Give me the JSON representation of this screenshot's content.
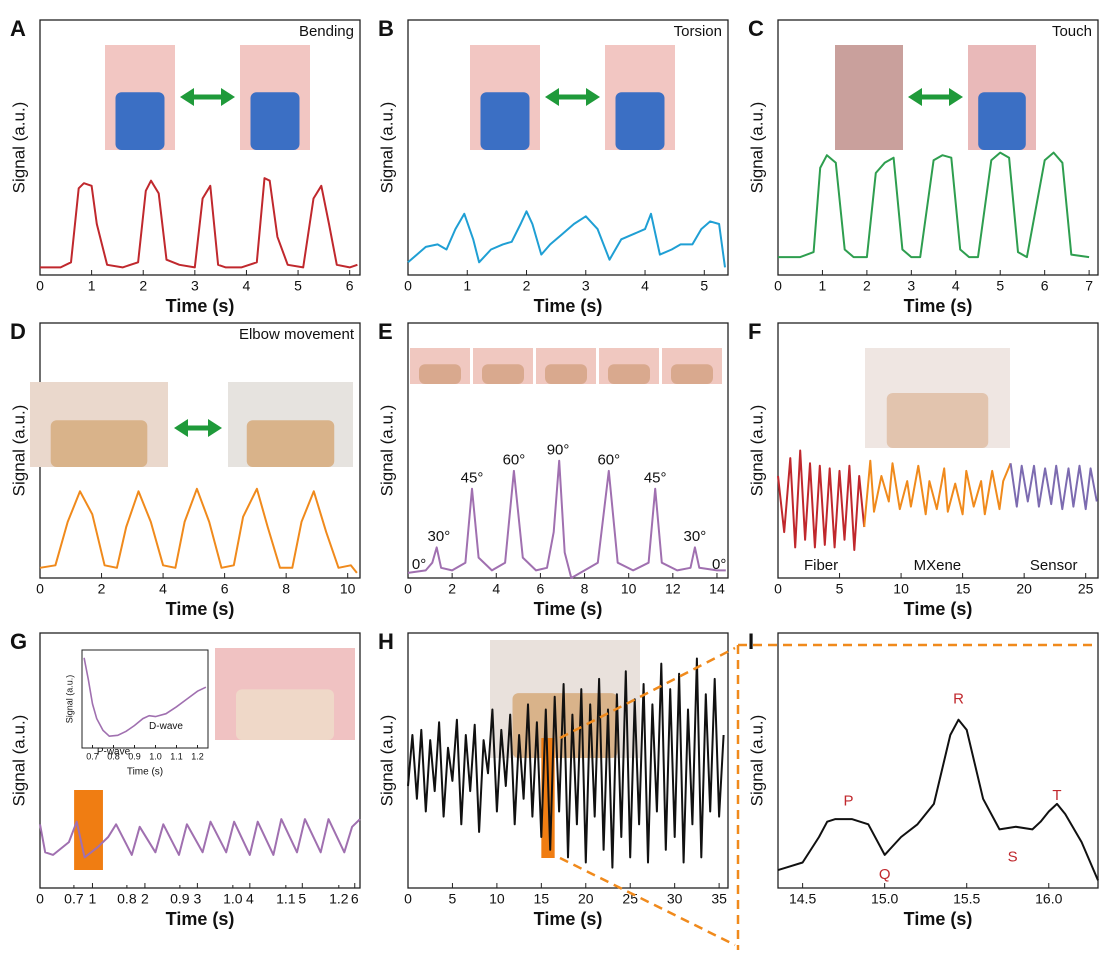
{
  "chart_data": [
    {
      "type": "line",
      "panel": "A",
      "annotation": "Bending",
      "xlabel": "Time (s)",
      "ylabel": "Signal (a.u.)",
      "xlim": [
        0,
        6.2
      ],
      "xticks": [
        0,
        1,
        2,
        3,
        4,
        5,
        6
      ],
      "ylim": [
        0,
        100
      ],
      "series": [
        {
          "color": "#c0282d",
          "x": [
            0,
            0.4,
            0.6,
            0.75,
            0.85,
            1.0,
            1.1,
            1.3,
            1.6,
            1.9,
            2.05,
            2.15,
            2.3,
            2.45,
            2.7,
            3.0,
            3.15,
            3.3,
            3.45,
            3.6,
            3.9,
            4.2,
            4.35,
            4.45,
            4.6,
            4.8,
            5.1,
            5.3,
            5.45,
            5.6,
            5.75,
            6.0,
            6.15
          ],
          "values": [
            3,
            3,
            5,
            34,
            36,
            35,
            20,
            4,
            3,
            5,
            33,
            37,
            32,
            6,
            4,
            3,
            30,
            35,
            4,
            3,
            3,
            5,
            38,
            37,
            15,
            4,
            3,
            30,
            35,
            20,
            4,
            3,
            4
          ]
        }
      ]
    },
    {
      "type": "line",
      "panel": "B",
      "annotation": "Torsion",
      "xlabel": "Time (s)",
      "ylabel": "Signal (a.u.)",
      "xlim": [
        0,
        5.4
      ],
      "xticks": [
        0,
        1,
        2,
        3,
        4,
        5
      ],
      "ylim": [
        0,
        100
      ],
      "series": [
        {
          "color": "#1f9fd4",
          "x": [
            0,
            0.15,
            0.3,
            0.5,
            0.65,
            0.8,
            0.95,
            1.1,
            1.2,
            1.4,
            1.6,
            1.75,
            1.9,
            2.0,
            2.1,
            2.25,
            2.4,
            2.6,
            2.8,
            3.0,
            3.2,
            3.4,
            3.6,
            3.8,
            4.0,
            4.1,
            4.25,
            4.45,
            4.6,
            4.8,
            4.95,
            5.1,
            5.25,
            5.35
          ],
          "values": [
            5,
            8,
            11,
            12,
            10,
            18,
            24,
            14,
            5,
            10,
            12,
            13,
            20,
            25,
            20,
            8,
            12,
            16,
            20,
            23,
            18,
            6,
            14,
            16,
            18,
            24,
            8,
            10,
            12,
            12,
            18,
            21,
            20,
            3
          ]
        }
      ]
    },
    {
      "type": "line",
      "panel": "C",
      "annotation": "Touch",
      "xlabel": "Time (s)",
      "ylabel": "Signal (a.u.)",
      "xlim": [
        0,
        7.2
      ],
      "xticks": [
        0,
        1,
        2,
        3,
        4,
        5,
        6,
        7
      ],
      "ylim": [
        0,
        100
      ],
      "series": [
        {
          "color": "#2e9e4f",
          "x": [
            0,
            0.5,
            0.8,
            0.95,
            1.1,
            1.3,
            1.5,
            1.7,
            2.0,
            2.2,
            2.4,
            2.6,
            2.8,
            3.0,
            3.2,
            3.5,
            3.7,
            3.9,
            4.1,
            4.3,
            4.5,
            4.8,
            5.0,
            5.2,
            5.4,
            5.6,
            6.0,
            6.2,
            6.4,
            6.6,
            7.0
          ],
          "values": [
            7,
            7,
            9,
            42,
            47,
            44,
            10,
            7,
            7,
            40,
            44,
            46,
            10,
            7,
            7,
            45,
            47,
            46,
            10,
            7,
            7,
            45,
            48,
            46,
            9,
            7,
            45,
            48,
            44,
            8,
            7
          ]
        }
      ]
    },
    {
      "type": "line",
      "panel": "D",
      "annotation": "Elbow movement",
      "xlabel": "Time (s)",
      "ylabel": "Signal (a.u.)",
      "xlim": [
        0,
        10.4
      ],
      "xticks": [
        0,
        2,
        4,
        6,
        8,
        10
      ],
      "ylim": [
        0,
        100
      ],
      "series": [
        {
          "color": "#f08a1c",
          "x": [
            0,
            0.5,
            0.9,
            1.3,
            1.7,
            2.1,
            2.5,
            2.8,
            3.2,
            3.6,
            4.0,
            4.4,
            4.7,
            5.1,
            5.5,
            5.9,
            6.3,
            6.6,
            7.05,
            7.4,
            7.8,
            8.2,
            8.5,
            8.9,
            9.3,
            9.7,
            10.1,
            10.3
          ],
          "values": [
            4,
            5,
            22,
            34,
            25,
            5,
            4,
            20,
            34,
            22,
            5,
            4,
            22,
            35,
            22,
            4,
            5,
            24,
            35,
            20,
            4,
            4,
            22,
            34,
            18,
            4,
            5,
            2
          ]
        }
      ]
    },
    {
      "type": "line",
      "panel": "E",
      "xlabel": "Time (s)",
      "ylabel": "Signal (a.u.)",
      "xlim": [
        0,
        14.5
      ],
      "xticks": [
        0,
        2,
        4,
        6,
        8,
        10,
        12,
        14
      ],
      "ylim": [
        0,
        100
      ],
      "peak_labels": [
        "0°",
        "30°",
        "45°",
        "60°",
        "90°",
        "60°",
        "45°",
        "30°",
        "0°"
      ],
      "series": [
        {
          "color": "#a070b0",
          "x": [
            0,
            0.8,
            1.1,
            1.3,
            1.5,
            2.0,
            2.6,
            2.9,
            3.2,
            3.8,
            4.4,
            4.8,
            5.2,
            5.8,
            6.3,
            6.6,
            6.85,
            7.1,
            7.4,
            8.0,
            8.6,
            9.1,
            9.5,
            10.2,
            10.9,
            11.2,
            11.5,
            12.2,
            12.8,
            13.0,
            13.2,
            14.0,
            14.4
          ],
          "values": [
            2,
            3,
            6,
            12,
            4,
            3,
            6,
            35,
            8,
            3,
            6,
            42,
            8,
            3,
            4,
            18,
            46,
            10,
            0,
            3,
            6,
            42,
            6,
            3,
            6,
            35,
            6,
            3,
            4,
            12,
            4,
            3,
            3
          ]
        }
      ]
    },
    {
      "type": "line",
      "panel": "F",
      "xlabel": "Time (s)",
      "ylabel": "Signal (a.u.)",
      "xlim": [
        0,
        26
      ],
      "xticks": [
        0,
        5,
        10,
        15,
        20,
        25
      ],
      "ylim": [
        0,
        100
      ],
      "series": [
        {
          "name": "Fiber",
          "color": "#c0282d",
          "x": [
            0,
            0.5,
            1.0,
            1.4,
            1.8,
            2.2,
            2.6,
            3.0,
            3.4,
            3.8,
            4.2,
            4.6,
            5.0,
            5.4,
            5.8,
            6.2,
            6.6,
            7.0
          ],
          "values": [
            40,
            18,
            47,
            12,
            50,
            15,
            45,
            12,
            44,
            13,
            43,
            12,
            42,
            15,
            44,
            11,
            40,
            20
          ]
        },
        {
          "name": "MXene",
          "color": "#f08a1c",
          "x": [
            7.0,
            7.5,
            7.8,
            8.4,
            9.0,
            9.3,
            9.9,
            10.5,
            10.8,
            11.4,
            12.0,
            12.3,
            12.9,
            13.5,
            13.8,
            14.4,
            15.0,
            15.3,
            15.9,
            16.5,
            16.8,
            17.4,
            18.0,
            18.3,
            18.9
          ],
          "values": [
            20,
            46,
            26,
            40,
            30,
            45,
            27,
            38,
            28,
            44,
            25,
            38,
            27,
            43,
            26,
            37,
            25,
            42,
            28,
            38,
            25,
            42,
            27,
            38,
            45
          ]
        },
        {
          "name": "Sensor",
          "color": "#7c6bb0",
          "x": [
            18.9,
            19.4,
            19.8,
            20.3,
            20.8,
            21.2,
            21.7,
            22.2,
            22.6,
            23.1,
            23.6,
            24.0,
            24.5,
            25.0,
            25.4,
            25.9
          ],
          "values": [
            45,
            28,
            44,
            30,
            44,
            28,
            43,
            29,
            44,
            27,
            43,
            28,
            44,
            27,
            43,
            30
          ]
        }
      ]
    },
    {
      "type": "line",
      "panel": "G",
      "xlabel": "Time (s)",
      "ylabel": "Signal (a.u.)",
      "xlim": [
        0,
        6.1
      ],
      "xticks": [
        0,
        1,
        2,
        3,
        4,
        5,
        6
      ],
      "ylim": [
        0,
        100
      ],
      "x2lim": [
        0.636,
        1.24
      ],
      "x2ticks": [
        0.7,
        0.8,
        0.9,
        {
          "value": 1,
          "label": "1.0"
        },
        1.1,
        1.2
      ],
      "highlight": {
        "color": "#f07d12",
        "x": [
          0.65,
          1.2
        ]
      },
      "series": [
        {
          "color": "#a070b0",
          "x": [
            0,
            0.1,
            0.25,
            0.55,
            0.7,
            0.85,
            1.1,
            1.3,
            1.45,
            1.75,
            1.9,
            2.2,
            2.35,
            2.65,
            2.8,
            3.1,
            3.25,
            3.55,
            3.7,
            4.0,
            4.15,
            4.45,
            4.6,
            4.9,
            5.05,
            5.35,
            5.5,
            5.8,
            5.95,
            6.1
          ],
          "values": [
            25,
            14,
            13,
            18,
            26,
            12,
            16,
            20,
            25,
            13,
            24,
            14,
            25,
            13,
            25,
            14,
            26,
            14,
            26,
            13,
            26,
            13,
            27,
            14,
            27,
            14,
            27,
            14,
            24,
            27
          ]
        }
      ],
      "inset": {
        "xlabel": "Time (s)",
        "ylabel": "Signal (a.u.)",
        "xlim": [
          0.65,
          1.25
        ],
        "ylim": [
          0,
          100
        ],
        "xticks": [
          0.7,
          0.8,
          0.9,
          {
            "value": 1,
            "label": "1.0"
          },
          1.1,
          1.2
        ],
        "labels": [
          "P-wave",
          "D-wave"
        ],
        "color": "#a070b0",
        "x": [
          0.66,
          0.68,
          0.7,
          0.72,
          0.75,
          0.78,
          0.82,
          0.86,
          0.9,
          0.94,
          0.97,
          1.0,
          1.05,
          1.1,
          1.15,
          1.2,
          1.24
        ],
        "values": [
          92,
          70,
          45,
          30,
          18,
          12,
          13,
          17,
          23,
          30,
          33,
          32,
          35,
          42,
          50,
          58,
          62
        ]
      }
    },
    {
      "type": "line",
      "panel": "H",
      "xlabel": "Time (s)",
      "ylabel": "Signal (a.u.)",
      "xlim": [
        0,
        36
      ],
      "xticks": [
        0,
        5,
        10,
        15,
        20,
        25,
        30,
        35
      ],
      "ylim": [
        0,
        100
      ],
      "highlight": {
        "color": "#f07d12",
        "x": [
          15,
          16.5
        ]
      },
      "series": [
        {
          "color": "#111111",
          "x": [
            0,
            0.5,
            1,
            1.5,
            2,
            2.5,
            3,
            3.5,
            4,
            4.5,
            5,
            5.5,
            6,
            6.5,
            7,
            7.5,
            8,
            8.5,
            9,
            9.5,
            10,
            10.5,
            11,
            11.5,
            12,
            12.5,
            13,
            13.5,
            14,
            14.5,
            15,
            15.5,
            16,
            16.5,
            17,
            17.5,
            18,
            18.5,
            19,
            19.5,
            20,
            20.5,
            21,
            21.5,
            22,
            22.5,
            23,
            23.5,
            24,
            24.5,
            25,
            25.5,
            26,
            26.5,
            27,
            27.5,
            28,
            28.5,
            29,
            29.5,
            30,
            30.5,
            31,
            31.5,
            32,
            32.5,
            33,
            33.5,
            34,
            34.5,
            35,
            35.5
          ],
          "values": [
            40,
            60,
            35,
            62,
            30,
            58,
            38,
            65,
            28,
            55,
            42,
            66,
            25,
            60,
            38,
            64,
            22,
            58,
            45,
            70,
            30,
            62,
            40,
            68,
            25,
            60,
            35,
            72,
            28,
            65,
            20,
            70,
            15,
            75,
            30,
            80,
            12,
            68,
            25,
            78,
            10,
            72,
            28,
            82,
            15,
            70,
            8,
            76,
            20,
            85,
            12,
            74,
            25,
            80,
            10,
            72,
            30,
            88,
            15,
            78,
            20,
            84,
            10,
            70,
            25,
            90,
            12,
            76,
            30,
            82,
            28,
            60
          ]
        }
      ]
    },
    {
      "type": "line",
      "panel": "I",
      "xlabel": "Time (s)",
      "ylabel": "Signal (a.u.)",
      "xlim": [
        14.35,
        16.3
      ],
      "xticks": [
        14.5,
        {
          "value": 15,
          "label": "15.0"
        },
        15.5,
        {
          "value": 16,
          "label": "16.0"
        }
      ],
      "ylim": [
        0,
        100
      ],
      "peak_labels": [
        "P",
        "Q",
        "R",
        "S",
        "T"
      ],
      "series": [
        {
          "color": "#111111",
          "x": [
            14.35,
            14.4,
            14.5,
            14.6,
            14.65,
            14.7,
            14.8,
            14.9,
            15.0,
            15.1,
            15.2,
            15.3,
            15.4,
            15.45,
            15.5,
            15.6,
            15.7,
            15.8,
            15.9,
            15.95,
            16.0,
            16.05,
            16.1,
            16.2,
            16.3
          ],
          "values": [
            7,
            8,
            10,
            20,
            26,
            27,
            27,
            25,
            13,
            20,
            25,
            33,
            60,
            66,
            62,
            35,
            23,
            24,
            23,
            26,
            30,
            33,
            29,
            18,
            3
          ]
        }
      ]
    }
  ]
}
